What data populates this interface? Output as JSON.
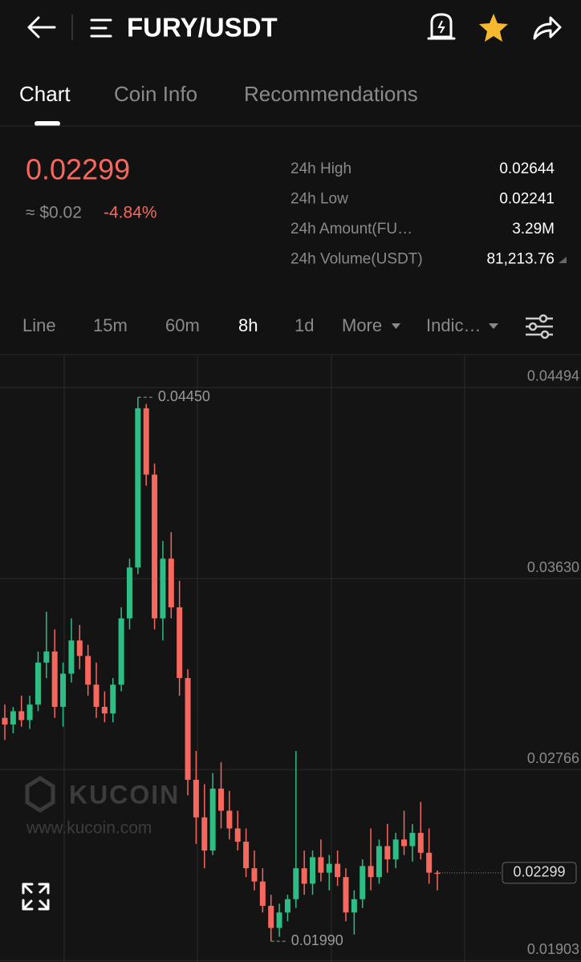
{
  "header": {
    "title": "FURY/USDT"
  },
  "tabs": [
    "Chart",
    "Coin Info",
    "Recommendations"
  ],
  "ticker": {
    "price": "0.02299",
    "fiat": "≈ $0.02",
    "change": "-4.84%",
    "stats": [
      [
        "24h High",
        "0.02644"
      ],
      [
        "24h Low",
        "0.02241"
      ],
      [
        "24h Amount(FU…",
        "3.29M"
      ],
      [
        "24h Volume(USDT)",
        "81,213.76"
      ]
    ]
  },
  "toolbar": [
    "Line",
    "15m",
    "60m",
    "8h",
    "1d",
    "More",
    "Indic…"
  ],
  "watermark": {
    "brand": "KUCOIN",
    "url": "www.kucoin.com"
  },
  "chart_data": {
    "type": "candlestick",
    "open": [
      0.03,
      0.0297,
      0.0303,
      0.0299,
      0.0306,
      0.0325,
      0.033,
      0.0305,
      0.032,
      0.0335,
      0.0328,
      0.0315,
      0.0305,
      0.0302,
      0.0315,
      0.0345,
      0.0368,
      0.044,
      0.041,
      0.0345,
      0.0372,
      0.035,
      0.0318,
      0.0272,
      0.0255,
      0.024,
      0.0268,
      0.0258,
      0.025,
      0.0244,
      0.0232,
      0.0226,
      0.0215,
      0.0205,
      0.0212,
      0.0218,
      0.0232,
      0.0225,
      0.0237,
      0.023,
      0.0234,
      0.0228,
      0.0212,
      0.0218,
      0.0233,
      0.0228,
      0.0242,
      0.0236,
      0.0245,
      0.0242,
      0.0248,
      0.0239,
      0.023
    ],
    "high": [
      0.0306,
      0.0305,
      0.031,
      0.031,
      0.033,
      0.0348,
      0.034,
      0.0325,
      0.0345,
      0.0342,
      0.0333,
      0.0325,
      0.0312,
      0.0318,
      0.035,
      0.0372,
      0.0445,
      0.0442,
      0.0415,
      0.038,
      0.0384,
      0.0362,
      0.0322,
      0.0285,
      0.027,
      0.0275,
      0.028,
      0.0267,
      0.0258,
      0.025,
      0.024,
      0.0232,
      0.022,
      0.0216,
      0.022,
      0.0285,
      0.024,
      0.024,
      0.0245,
      0.0238,
      0.024,
      0.0232,
      0.0222,
      0.0236,
      0.025,
      0.0245,
      0.0252,
      0.0248,
      0.0258,
      0.0252,
      0.0262,
      0.025,
      0.0231
    ],
    "low": [
      0.029,
      0.0293,
      0.0296,
      0.0295,
      0.0303,
      0.0318,
      0.03,
      0.0296,
      0.0316,
      0.0322,
      0.031,
      0.03,
      0.0298,
      0.0298,
      0.0312,
      0.034,
      0.0365,
      0.0405,
      0.034,
      0.0335,
      0.0345,
      0.031,
      0.0265,
      0.0243,
      0.0232,
      0.0238,
      0.025,
      0.0245,
      0.024,
      0.0228,
      0.0222,
      0.0212,
      0.0199,
      0.0201,
      0.0208,
      0.0214,
      0.022,
      0.022,
      0.0226,
      0.0222,
      0.0224,
      0.0208,
      0.0202,
      0.0214,
      0.0222,
      0.0225,
      0.023,
      0.0232,
      0.0238,
      0.0235,
      0.0236,
      0.0225,
      0.0222
    ],
    "close": [
      0.0297,
      0.0303,
      0.0299,
      0.0306,
      0.0325,
      0.033,
      0.0305,
      0.032,
      0.0335,
      0.0328,
      0.0315,
      0.0305,
      0.0302,
      0.0315,
      0.0345,
      0.0368,
      0.044,
      0.041,
      0.0345,
      0.0372,
      0.035,
      0.0318,
      0.0272,
      0.0255,
      0.024,
      0.0268,
      0.0258,
      0.025,
      0.0244,
      0.0232,
      0.0226,
      0.0215,
      0.0205,
      0.0212,
      0.0218,
      0.0232,
      0.0225,
      0.0237,
      0.023,
      0.0234,
      0.0228,
      0.0212,
      0.0218,
      0.0233,
      0.0228,
      0.0242,
      0.0236,
      0.0245,
      0.0242,
      0.0248,
      0.0239,
      0.023,
      0.02299
    ],
    "up_color": "#2ebd85",
    "down_color": "#f6685e",
    "ylim": [
      0.01896,
      0.04639
    ],
    "yticks": [
      0.04494,
      {
        "value": 0.0363,
        "label": "0.03630"
      },
      0.02766,
      0.01903
    ],
    "max_label": {
      "value": 0.0445,
      "label": "0.04450"
    },
    "min_label": {
      "value": 0.0199,
      "label": "0.01990"
    },
    "last_price": 0.02299,
    "grid": true
  }
}
